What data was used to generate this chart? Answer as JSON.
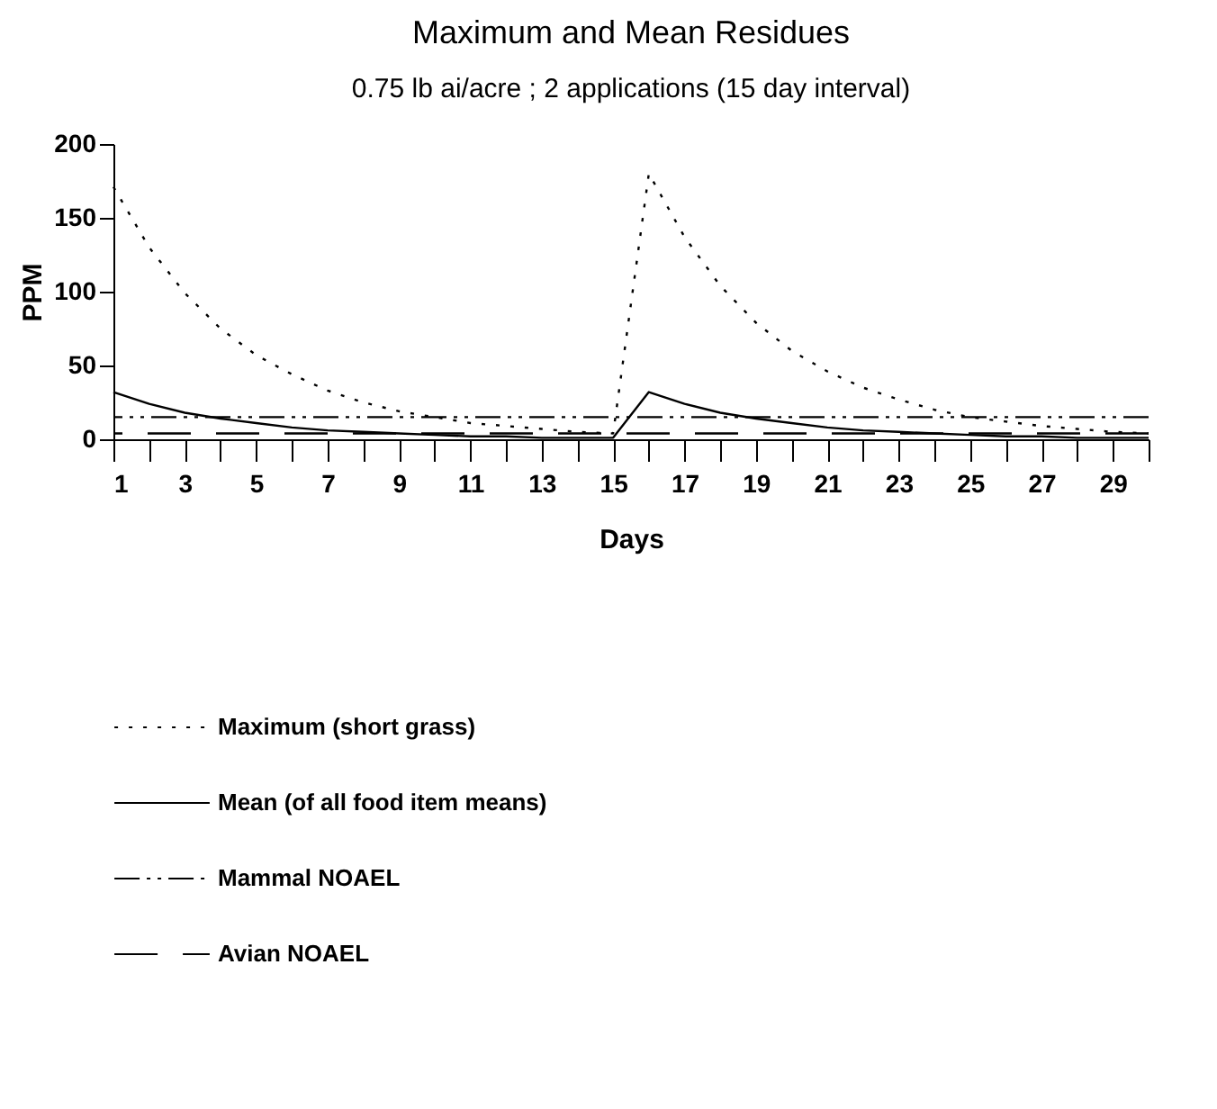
{
  "chart_data": {
    "type": "line",
    "title": "Maximum and Mean Residues",
    "subtitle": "0.75 lb ai/acre ; 2 applications (15 day interval)",
    "xlabel": "Days",
    "ylabel": "PPM",
    "x": [
      1,
      2,
      3,
      4,
      5,
      6,
      7,
      8,
      9,
      10,
      11,
      12,
      13,
      14,
      15,
      16,
      17,
      18,
      19,
      20,
      21,
      22,
      23,
      24,
      25,
      26,
      27,
      28,
      29,
      30
    ],
    "series": [
      {
        "name": "Maximum (short grass)",
        "color": "#000000",
        "line_style": "dotted",
        "values": [
          171,
          130,
          99,
          75,
          57,
          44,
          33,
          25,
          19,
          15,
          11,
          9,
          7,
          5,
          4,
          180,
          137,
          104,
          79,
          60,
          46,
          35,
          27,
          20,
          15,
          12,
          9,
          7,
          5,
          4
        ]
      },
      {
        "name": "Mean (of all food item means)",
        "color": "#000000",
        "line_style": "solid",
        "values": [
          32,
          24,
          18,
          14,
          11,
          8,
          6,
          5,
          4,
          3,
          2,
          2,
          1,
          1,
          1,
          32,
          24,
          18,
          14,
          11,
          8,
          6,
          5,
          4,
          3,
          2,
          2,
          1,
          1,
          1
        ]
      }
    ],
    "ref_lines": [
      {
        "axis": "y",
        "value": 15,
        "label": "Mammal NOAEL",
        "color": "#000000",
        "line_style": "dashed"
      },
      {
        "axis": "y",
        "value": 4,
        "label": "Avian NOAEL",
        "color": "#000000",
        "line_style": "dashed"
      }
    ],
    "xlim": [
      1,
      30
    ],
    "xticks": [
      1,
      {
        "value": 2,
        "label": null
      },
      3,
      {
        "value": 4,
        "label": null
      },
      5,
      {
        "value": 6,
        "label": null
      },
      7,
      {
        "value": 8,
        "label": null
      },
      9,
      {
        "value": 10,
        "label": null
      },
      11,
      {
        "value": 12,
        "label": null
      },
      13,
      {
        "value": 14,
        "label": null
      },
      15,
      {
        "value": 16,
        "label": null
      },
      17,
      {
        "value": 18,
        "label": null
      },
      19,
      {
        "value": 20,
        "label": null
      },
      21,
      {
        "value": 22,
        "label": null
      },
      23,
      {
        "value": 24,
        "label": null
      },
      25,
      {
        "value": 26,
        "label": null
      },
      27,
      {
        "value": 28,
        "label": null
      },
      29,
      {
        "value": 30,
        "label": null
      }
    ],
    "ylim": [
      0,
      200
    ],
    "yticks": [
      0,
      50,
      100,
      150,
      200
    ],
    "grid": false,
    "legend": "bottom",
    "marker": "none"
  }
}
